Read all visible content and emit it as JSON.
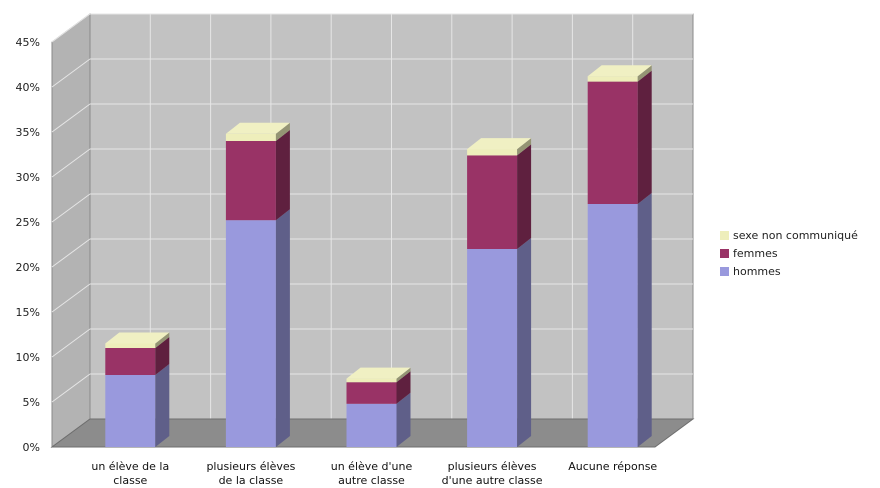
{
  "chart_data": {
    "type": "bar",
    "stacked": true,
    "three_d": true,
    "categories": [
      [
        "un élève de la",
        "classe"
      ],
      [
        "plusieurs élèves",
        "de la classe"
      ],
      [
        "un élève d'une",
        "autre classe"
      ],
      [
        "plusieurs élèves",
        "d'une autre classe"
      ],
      [
        "Aucune réponse"
      ]
    ],
    "series": [
      {
        "name": "hommes",
        "color": "#9999dd",
        "values": [
          8.0,
          25.2,
          4.8,
          22.0,
          27.0
        ]
      },
      {
        "name": "femmes",
        "color": "#993366",
        "values": [
          3.0,
          8.8,
          2.4,
          10.4,
          13.6
        ]
      },
      {
        "name": "sexe non communiqué",
        "color": "#eeeebb",
        "values": [
          0.5,
          0.8,
          0.4,
          0.7,
          0.6
        ]
      }
    ],
    "y_ticks": [
      "0%",
      "5%",
      "10%",
      "15%",
      "20%",
      "25%",
      "30%",
      "35%",
      "40%",
      "45%"
    ],
    "ylim": [
      0,
      45
    ],
    "grid": true,
    "legend_position": "right"
  }
}
